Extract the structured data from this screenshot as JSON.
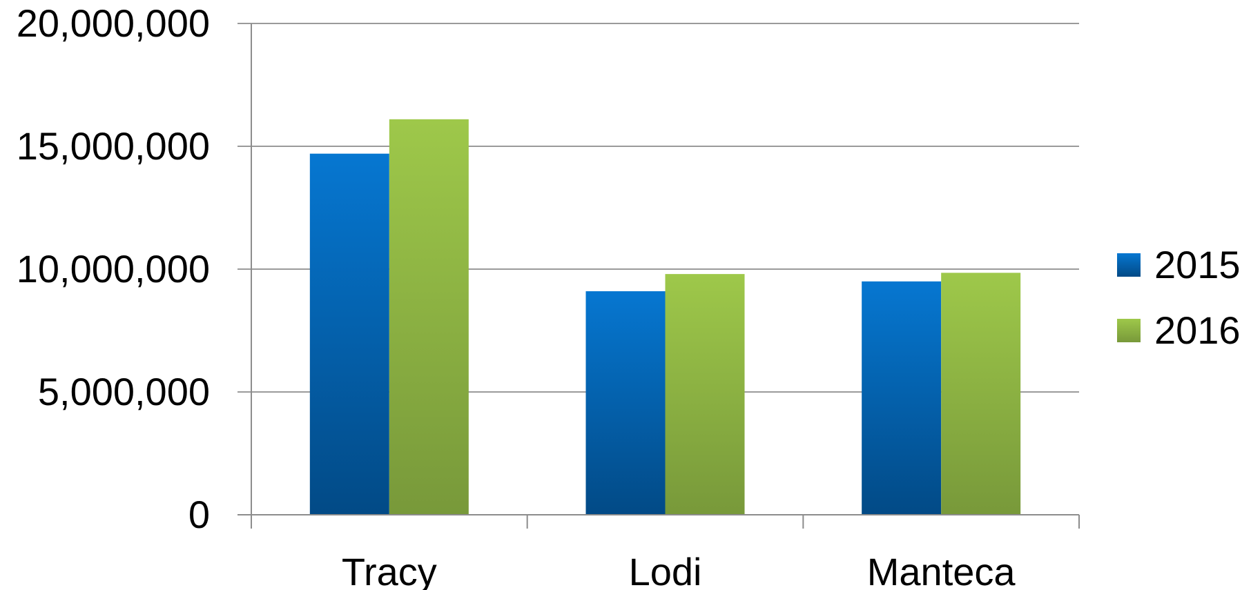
{
  "chart_data": {
    "type": "bar",
    "categories": [
      "Tracy",
      "Lodi",
      "Manteca"
    ],
    "series": [
      {
        "name": "2015",
        "values": [
          14700000,
          9100000,
          9500000
        ],
        "color_top": "#0677d1",
        "color_bottom": "#024a86"
      },
      {
        "name": "2016",
        "values": [
          16100000,
          9800000,
          9850000
        ],
        "color_top": "#9ec84a",
        "color_bottom": "#78993a"
      }
    ],
    "ylim": [
      0,
      20000000
    ],
    "yticks": [
      0,
      5000000,
      10000000,
      15000000,
      20000000
    ],
    "ytick_labels": [
      "0",
      "5,000,000",
      "10,000,000",
      "15,000,000",
      "20,000,000"
    ],
    "grid": true,
    "legend_position": "right",
    "title": "",
    "xlabel": "",
    "ylabel": ""
  }
}
